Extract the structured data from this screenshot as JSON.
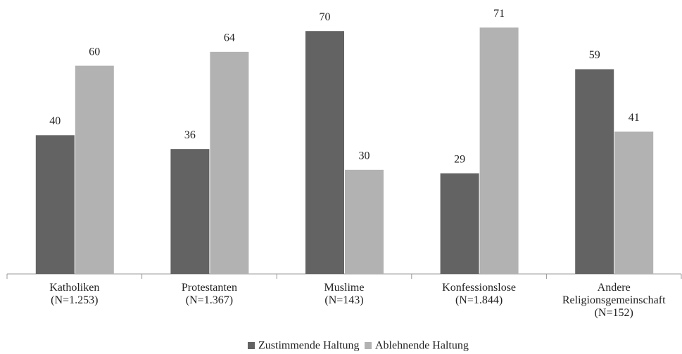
{
  "chart_data": {
    "type": "bar",
    "categories": [
      "Katholiken\n(N=1.253)",
      "Protestanten\n(N=1.367)",
      "Muslime\n(N=143)",
      "Konfessionslose\n(N=1.844)",
      "Andere\nReligionsgemeinschaft\n(N=152)"
    ],
    "series": [
      {
        "name": "Zustimmende Haltung",
        "color": "#636363",
        "values": [
          40,
          36,
          70,
          29,
          59
        ]
      },
      {
        "name": "Ablehnende Haltung",
        "color": "#b2b2b3",
        "values": [
          60,
          64,
          30,
          71,
          41
        ]
      }
    ],
    "legend": "bottom"
  }
}
